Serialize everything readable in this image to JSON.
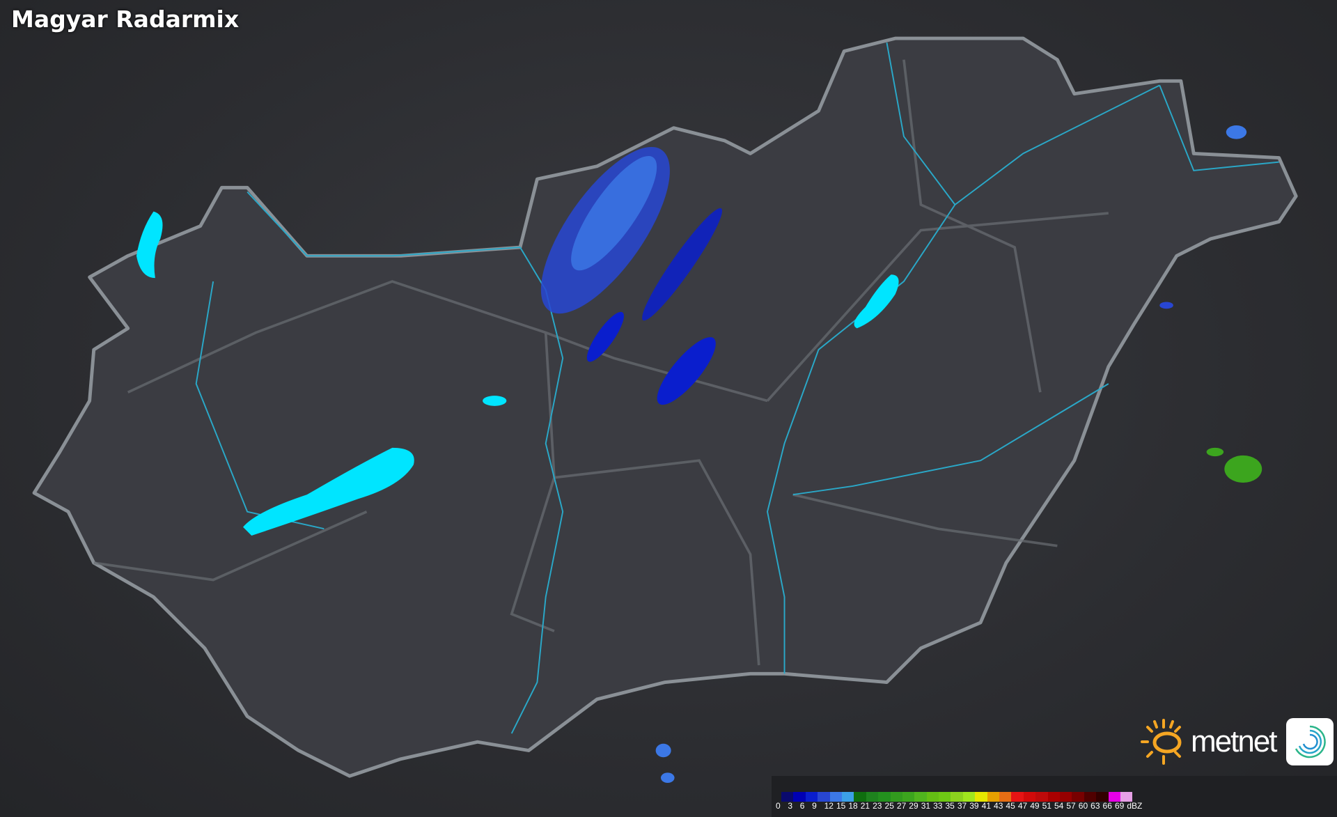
{
  "title": "Magyar Radarmix",
  "legend": {
    "unit": "dBZ",
    "labels": [
      "0",
      "3",
      "6",
      "9",
      "12",
      "15",
      "18",
      "21",
      "23",
      "25",
      "27",
      "29",
      "31",
      "33",
      "35",
      "37",
      "39",
      "41",
      "43",
      "45",
      "47",
      "49",
      "51",
      "54",
      "57",
      "60",
      "63",
      "66",
      "69"
    ],
    "colors": [
      "#0a0a6e",
      "#0000b4",
      "#0a1ecd",
      "#2846d2",
      "#3c78e6",
      "#3ca0e6",
      "#0f6e0f",
      "#1e821e",
      "#23901e",
      "#329b1e",
      "#3ca51e",
      "#50b41e",
      "#64be14",
      "#6ec814",
      "#8cd21e",
      "#a0e61e",
      "#e6e600",
      "#e6a000",
      "#e66e14",
      "#e61414",
      "#d20a0a",
      "#be0a0a",
      "#aa0000",
      "#960000",
      "#780000",
      "#500000",
      "#320000",
      "#e600e6",
      "#e6a0e6",
      "#8ce6e6"
    ]
  },
  "brand": {
    "name": "metnet",
    "sun_color": "#f5a623"
  },
  "colors": {
    "lakes": "#00e5ff",
    "rivers": "#2aa8c8",
    "border": "#8a9096",
    "land": "#3a3b40"
  }
}
